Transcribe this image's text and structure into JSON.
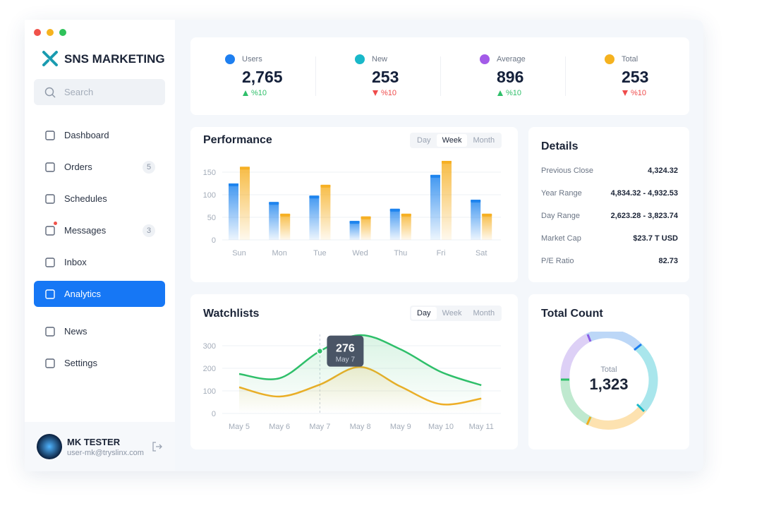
{
  "sidebar": {
    "brand": "SNS MARKETING",
    "search": "Search",
    "nav": [
      {
        "label": "Dashboard"
      },
      {
        "label": "Orders",
        "badge": 5
      },
      {
        "label": "Schedules"
      },
      {
        "label": "Messages",
        "badge": 3
      },
      {
        "label": "Inbox"
      },
      {
        "label": "Analytics",
        "active": true
      },
      {
        "label": "News"
      },
      {
        "label": "Settings"
      }
    ],
    "user": {
      "name": "MK TESTER",
      "email": "user-mk@tryslinx.com"
    }
  },
  "stats": [
    {
      "label": "Users",
      "value": "2,765",
      "change": "%10",
      "trend": "up",
      "color": "#1e7ff0"
    },
    {
      "label": "New",
      "value": "253",
      "change": "%10",
      "trend": "down",
      "color": "#19b8c9"
    },
    {
      "label": "Average",
      "value": "896",
      "change": "%10",
      "trend": "up",
      "color": "#a35be8"
    },
    {
      "label": "Total",
      "value": "253",
      "change": "%10",
      "trend": "down",
      "color": "#f5b21f"
    }
  ],
  "performance": {
    "title": "Performance",
    "tabs": [
      "Day",
      "Week",
      "Month"
    ],
    "active_tab": 1,
    "categories": [
      "Sun",
      "Mon",
      "Tue",
      "Wed",
      "Thu",
      "Fri",
      "Sat"
    ],
    "series": [
      {
        "color": "#1e84ee",
        "values": [
          125,
          84,
          98,
          42,
          69,
          144,
          89
        ]
      },
      {
        "color": "#f6b024",
        "values": [
          162,
          58,
          122,
          52,
          58,
          175,
          58
        ]
      }
    ],
    "ylim": [
      0,
      175
    ],
    "yticks": [
      0,
      50,
      100,
      150
    ]
  },
  "details": {
    "title": "Details",
    "rows": [
      [
        "Previous Close",
        "4,324.32"
      ],
      [
        "Year Range",
        "4,834.32 - 4,932.53"
      ],
      [
        "Day Range",
        "2,623.28 - 3,823.74"
      ],
      [
        "Market Cap",
        "$23.7 T USD"
      ],
      [
        "P/E Ratio",
        "82.73"
      ]
    ]
  },
  "watchlists": {
    "title": "Watchlists",
    "tabs": [
      "Day",
      "Week",
      "Month"
    ],
    "active_tab": 0,
    "categories": [
      "May 5",
      "May 6",
      "May 7",
      "May 8",
      "May 9",
      "May 10",
      "May 11"
    ],
    "series": [
      {
        "color": "#2fbf6a",
        "values": [
          175,
          156,
          276,
          347,
          284,
          184,
          125
        ]
      },
      {
        "color": "#f2ad24",
        "values": [
          116,
          75,
          128,
          206,
          119,
          41,
          66
        ]
      }
    ],
    "ylim": [
      0,
      350
    ],
    "yticks": [
      0,
      100,
      200,
      300
    ],
    "highlight": 2
  },
  "total_count": {
    "title": "Total Count",
    "label": "Total",
    "value": "1,323"
  }
}
